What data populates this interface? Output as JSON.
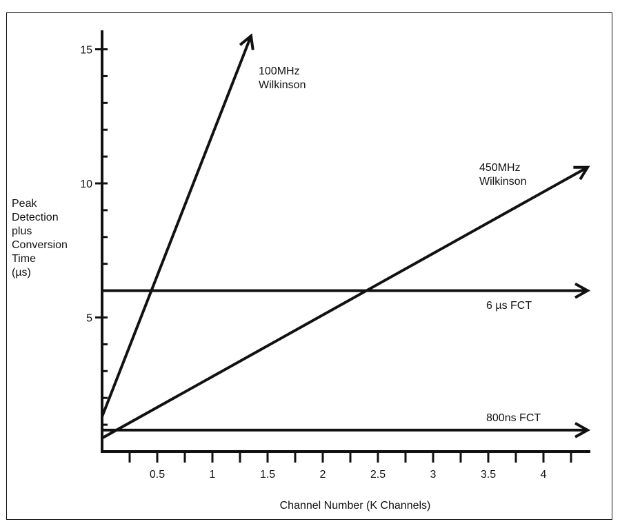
{
  "chart_data": {
    "type": "line",
    "title": "",
    "xlabel": "Channel Number (K Channels)",
    "ylabel_lines": [
      "Peak",
      "Detection",
      "plus",
      "Conversion",
      "Time",
      "(µs)"
    ],
    "xlim": [
      0,
      4.4
    ],
    "ylim": [
      0,
      15.5
    ],
    "x_ticks": [
      0.5,
      1,
      1.5,
      2,
      2.5,
      3,
      3.5,
      4
    ],
    "x_tick_labels": [
      "0.5",
      "1",
      "1.5",
      "2",
      "2.5",
      "3",
      "3.5",
      "4"
    ],
    "y_ticks": [
      5,
      10,
      15
    ],
    "y_tick_labels": [
      "5",
      "10",
      "15"
    ],
    "grid": false,
    "legend": "none",
    "series": [
      {
        "label_lines": [
          "100MHz",
          "Wilkinson"
        ],
        "x": [
          0,
          1.35
        ],
        "y": [
          1.3,
          15.5
        ]
      },
      {
        "label_lines": [
          "450MHz",
          "Wilkinson"
        ],
        "x": [
          0,
          4.4
        ],
        "y": [
          0.5,
          10.6
        ]
      },
      {
        "label_lines": [
          "6 µs FCT"
        ],
        "x": [
          0,
          4.4
        ],
        "y": [
          6,
          6
        ]
      },
      {
        "label_lines": [
          "800ns FCT"
        ],
        "x": [
          0,
          4.4
        ],
        "y": [
          0.8,
          0.8
        ]
      }
    ]
  }
}
